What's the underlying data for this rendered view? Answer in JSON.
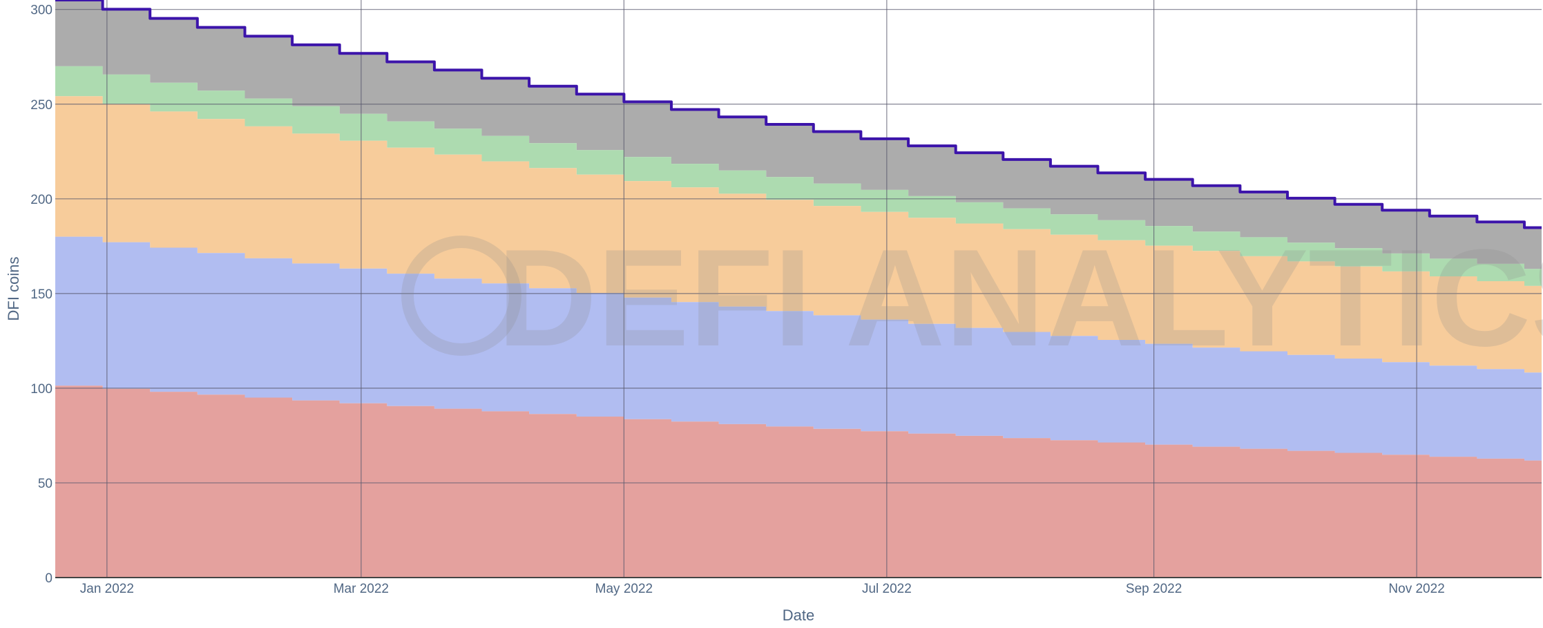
{
  "chart_data": {
    "type": "area",
    "stacked": true,
    "step": true,
    "title": "",
    "xlabel": "Date",
    "ylabel": "DFI coins",
    "x_range": [
      "2021-12-20",
      "2022-11-30"
    ],
    "ylim": [
      0,
      305
    ],
    "grid": true,
    "x_ticks": [
      {
        "date": "2022-01-01",
        "label": "Jan 2022"
      },
      {
        "date": "2022-03-01",
        "label": "Mar 2022"
      },
      {
        "date": "2022-05-01",
        "label": "May 2022"
      },
      {
        "date": "2022-07-01",
        "label": "Jul 2022"
      },
      {
        "date": "2022-09-01",
        "label": "Sep 2022"
      },
      {
        "date": "2022-11-01",
        "label": "Nov 2022"
      }
    ],
    "y_ticks": [
      0,
      50,
      100,
      150,
      200,
      250,
      300
    ],
    "step_interval_days": 11,
    "start": {
      "date": "2021-12-20",
      "values": [
        101.3,
        78.7,
        74.2,
        15.8,
        35.0
      ],
      "total": 305.0
    },
    "end": {
      "date": "2022-11-30",
      "values": [
        61.8,
        46.5,
        45.7,
        9.0,
        21.8
      ],
      "total": 184.8
    },
    "series": [
      {
        "values_ref": 0,
        "color": "#e4a19e"
      },
      {
        "values_ref": 1,
        "color": "#b1bdf1"
      },
      {
        "values_ref": 2,
        "color": "#f7cc9b"
      },
      {
        "values_ref": 3,
        "color": "#addbb0"
      },
      {
        "values_ref": 4,
        "color": "#acacac"
      }
    ],
    "total_line_color": "#3c14aa",
    "watermark": "DEFI ANALYTICS"
  }
}
